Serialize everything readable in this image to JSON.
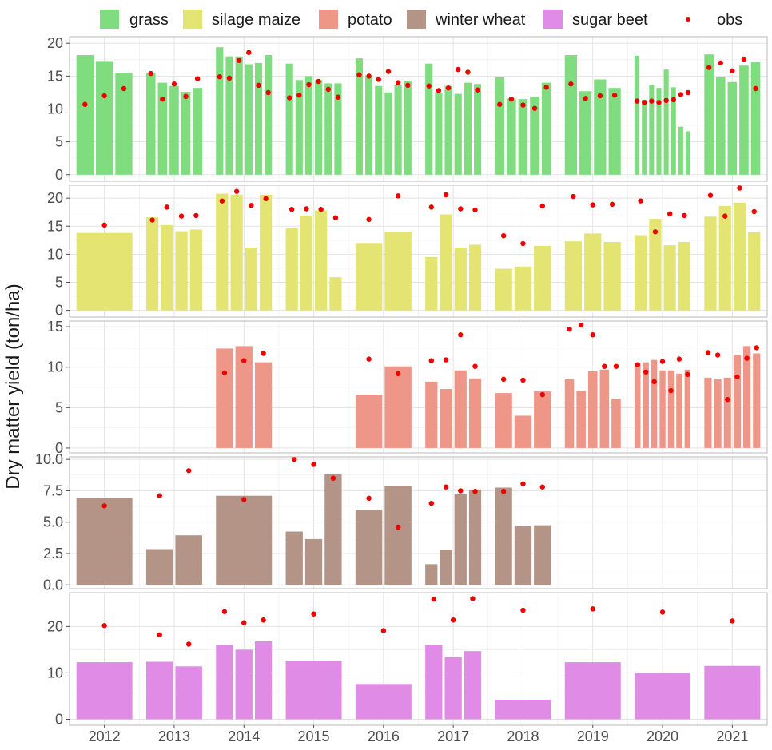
{
  "chart_data": {
    "type": "bar",
    "ylabel": "Dry matter yield (ton/ha)",
    "years": [
      "2012",
      "2013",
      "2014",
      "2015",
      "2016",
      "2017",
      "2018",
      "2019",
      "2020",
      "2021"
    ],
    "legend": [
      {
        "key": "grass",
        "label": "grass",
        "kind": "fill",
        "color": "#7fdc7f"
      },
      {
        "key": "silage_maize",
        "label": "silage maize",
        "kind": "fill",
        "color": "#e4e472"
      },
      {
        "key": "potato",
        "label": "potato",
        "kind": "fill",
        "color": "#ee9788"
      },
      {
        "key": "winter_wheat",
        "label": "winter wheat",
        "kind": "fill",
        "color": "#b39486"
      },
      {
        "key": "sugar_beet",
        "label": "sugar beet",
        "kind": "fill",
        "color": "#e08ce6"
      },
      {
        "key": "obs",
        "label": "obs",
        "kind": "point",
        "color": "#ee0000"
      }
    ],
    "panels": [
      {
        "crop": "grass",
        "color": "#7fdc7f",
        "ylim": [
          -1,
          21
        ],
        "yticks": [
          0,
          5,
          10,
          15,
          20
        ],
        "tick_labels": [
          "0",
          "5",
          "10",
          "15",
          "20"
        ],
        "years": [
          {
            "year": "2012",
            "bars": [
              18.2,
              17.3,
              15.5
            ],
            "obs": [
              10.7,
              12.0,
              13.1
            ]
          },
          {
            "year": "2013",
            "bars": [
              15.5,
              14.0,
              13.5,
              12.6,
              13.2
            ],
            "obs": [
              15.4,
              11.5,
              13.8,
              11.9,
              14.6
            ]
          },
          {
            "year": "2014",
            "bars": [
              19.4,
              18.0,
              18.0,
              16.8,
              17.0,
              18.2
            ],
            "obs": [
              14.9,
              14.7,
              17.4,
              18.6,
              13.6,
              12.5
            ]
          },
          {
            "year": "2015",
            "bars": [
              16.9,
              14.4,
              15.0,
              14.4,
              13.9,
              13.9
            ],
            "obs": [
              11.7,
              12.1,
              13.7,
              14.2,
              13.0,
              11.8
            ]
          },
          {
            "year": "2016",
            "bars": [
              17.7,
              15.1,
              13.5,
              12.5,
              13.6,
              14.3
            ],
            "obs": [
              15.2,
              15.0,
              14.5,
              15.7,
              14.0,
              13.6
            ]
          },
          {
            "year": "2017",
            "bars": [
              16.9,
              12.4,
              13.5,
              12.3,
              14.0,
              13.8
            ],
            "obs": [
              13.5,
              12.8,
              13.2,
              16.0,
              15.6,
              12.9
            ]
          },
          {
            "year": "2018",
            "bars": [
              14.8,
              11.6,
              11.5,
              11.9,
              14.0
            ],
            "obs": [
              10.7,
              11.5,
              10.6,
              10.1,
              13.3
            ]
          },
          {
            "year": "2019",
            "bars": [
              18.2,
              12.7,
              14.5,
              13.2
            ],
            "obs": [
              13.8,
              11.6,
              12.0,
              12.1
            ]
          },
          {
            "year": "2020",
            "bars": [
              18.1,
              11.4,
              13.7,
              13.2,
              16.0,
              13.3,
              7.3,
              6.6
            ],
            "obs": [
              11.2,
              11.0,
              11.2,
              11.0,
              11.3,
              11.4,
              12.2,
              12.5
            ]
          },
          {
            "year": "2021",
            "bars": [
              18.3,
              14.8,
              14.1,
              16.6,
              17.1
            ],
            "obs": [
              16.3,
              17.0,
              15.8,
              17.6,
              13.1
            ]
          }
        ]
      },
      {
        "crop": "silage maize",
        "color": "#e4e472",
        "ylim": [
          -1.2,
          22.3
        ],
        "yticks": [
          0,
          5,
          10,
          15,
          20
        ],
        "tick_labels": [
          "0",
          "5",
          "10",
          "15",
          "20"
        ],
        "years": [
          {
            "year": "2012",
            "bars": [
              13.8
            ],
            "obs": [
              15.2
            ]
          },
          {
            "year": "2013",
            "bars": [
              16.6,
              15.2,
              14.1,
              14.4
            ],
            "obs": [
              16.1,
              18.4,
              16.8,
              16.9
            ]
          },
          {
            "year": "2014",
            "bars": [
              20.8,
              20.6,
              11.2,
              20.6
            ],
            "obs": [
              19.5,
              21.2,
              18.7,
              19.9
            ]
          },
          {
            "year": "2015",
            "bars": [
              14.6,
              16.9,
              17.8,
              5.9
            ],
            "obs": [
              18.0,
              18.1,
              18.0,
              16.5
            ]
          },
          {
            "year": "2016",
            "bars": [
              12.0,
              14.0
            ],
            "obs": [
              16.2,
              20.4
            ]
          },
          {
            "year": "2017",
            "bars": [
              9.5,
              17.1,
              11.2,
              11.7
            ],
            "obs": [
              18.4,
              20.6,
              18.1,
              17.9
            ]
          },
          {
            "year": "2018",
            "bars": [
              7.4,
              7.8,
              11.5
            ],
            "obs": [
              13.3,
              11.9,
              18.6
            ]
          },
          {
            "year": "2019",
            "bars": [
              12.3,
              13.7,
              12.2
            ],
            "obs": [
              20.3,
              18.8,
              18.9
            ]
          },
          {
            "year": "2020",
            "bars": [
              13.4,
              16.3,
              11.6,
              12.2
            ],
            "obs": [
              19.5,
              14.0,
              17.2,
              16.9
            ]
          },
          {
            "year": "2021",
            "bars": [
              16.7,
              18.6,
              19.2,
              13.9
            ],
            "obs": [
              20.5,
              16.8,
              21.8,
              17.6
            ]
          }
        ]
      },
      {
        "crop": "potato",
        "color": "#ee9788",
        "ylim": [
          -0.6,
          15.7
        ],
        "yticks": [
          0,
          5,
          10,
          15
        ],
        "tick_labels": [
          "0",
          "5",
          "10",
          "15"
        ],
        "years": [
          {
            "year": "2012",
            "bars": [],
            "obs": []
          },
          {
            "year": "2013",
            "bars": [],
            "obs": []
          },
          {
            "year": "2014",
            "bars": [
              12.3,
              12.6,
              10.6
            ],
            "obs": [
              9.3,
              10.8,
              11.7
            ]
          },
          {
            "year": "2015",
            "bars": [],
            "obs": []
          },
          {
            "year": "2016",
            "bars": [
              6.6,
              10.1
            ],
            "obs": [
              11.0,
              9.2
            ]
          },
          {
            "year": "2017",
            "bars": [
              8.2,
              7.3,
              9.6,
              8.6
            ],
            "obs": [
              10.8,
              10.9,
              14.0,
              10.1
            ]
          },
          {
            "year": "2018",
            "bars": [
              6.8,
              4.0,
              7.0
            ],
            "obs": [
              8.5,
              8.4,
              6.6
            ]
          },
          {
            "year": "2019",
            "bars": [
              8.5,
              7.1,
              9.5,
              9.7,
              6.1
            ],
            "obs": [
              14.7,
              15.2,
              14.0,
              10.1,
              10.1
            ]
          },
          {
            "year": "2020",
            "bars": [
              10.5,
              10.6,
              10.9,
              9.6,
              9.6,
              9.2,
              9.7
            ],
            "obs": [
              10.3,
              9.4,
              8.2,
              10.7,
              7.1,
              11.0,
              9.1
            ]
          },
          {
            "year": "2021",
            "bars": [
              8.7,
              8.5,
              8.7,
              11.5,
              12.6,
              11.7
            ],
            "obs": [
              11.8,
              11.5,
              6.0,
              8.8,
              11.1,
              12.4
            ]
          }
        ]
      },
      {
        "crop": "winter wheat",
        "color": "#b39486",
        "ylim": [
          -0.3,
          10.2
        ],
        "yticks": [
          0,
          2.5,
          5,
          7.5,
          10
        ],
        "tick_labels": [
          "0.0",
          "2.5",
          "5.0",
          "7.5",
          "10.0"
        ],
        "years": [
          {
            "year": "2012",
            "bars": [
              6.9
            ],
            "obs": [
              6.3
            ]
          },
          {
            "year": "2013",
            "bars": [
              2.85,
              3.95
            ],
            "obs": [
              7.1,
              9.1
            ]
          },
          {
            "year": "2014",
            "bars": [
              7.1
            ],
            "obs": [
              6.8
            ]
          },
          {
            "year": "2015",
            "bars": [
              4.25,
              3.65,
              8.8
            ],
            "obs": [
              10.0,
              9.6,
              8.5
            ]
          },
          {
            "year": "2016",
            "bars": [
              6.0,
              7.9
            ],
            "obs": [
              6.9,
              4.6
            ]
          },
          {
            "year": "2017",
            "bars": [
              1.65,
              2.8,
              7.25,
              7.6
            ],
            "obs": [
              6.5,
              7.8,
              7.5,
              7.45
            ]
          },
          {
            "year": "2018",
            "bars": [
              7.75,
              4.7,
              4.75
            ],
            "obs": [
              7.45,
              8.05,
              7.8
            ]
          },
          {
            "year": "2019",
            "bars": [],
            "obs": []
          },
          {
            "year": "2020",
            "bars": [],
            "obs": []
          },
          {
            "year": "2021",
            "bars": [],
            "obs": []
          }
        ]
      },
      {
        "crop": "sugar beet",
        "color": "#e08ce6",
        "ylim": [
          -1.3,
          27.3
        ],
        "yticks": [
          0,
          10,
          20
        ],
        "tick_labels": [
          "0",
          "10",
          "20"
        ],
        "years": [
          {
            "year": "2012",
            "bars": [
              12.3
            ],
            "obs": [
              20.2
            ]
          },
          {
            "year": "2013",
            "bars": [
              12.4,
              11.4
            ],
            "obs": [
              18.2,
              16.2
            ]
          },
          {
            "year": "2014",
            "bars": [
              16.1,
              15.0,
              16.8
            ],
            "obs": [
              23.2,
              20.8,
              21.4
            ]
          },
          {
            "year": "2015",
            "bars": [
              12.5
            ],
            "obs": [
              22.7
            ]
          },
          {
            "year": "2016",
            "bars": [
              7.6
            ],
            "obs": [
              19.1
            ]
          },
          {
            "year": "2017",
            "bars": [
              16.1,
              13.4,
              14.7
            ],
            "obs": [
              25.9,
              21.4,
              26.0
            ]
          },
          {
            "year": "2018",
            "bars": [
              4.2
            ],
            "obs": [
              23.5
            ]
          },
          {
            "year": "2019",
            "bars": [
              12.3
            ],
            "obs": [
              23.8
            ]
          },
          {
            "year": "2020",
            "bars": [
              10.0
            ],
            "obs": [
              23.1
            ]
          },
          {
            "year": "2021",
            "bars": [
              11.5
            ],
            "obs": [
              21.2
            ]
          }
        ]
      }
    ]
  }
}
